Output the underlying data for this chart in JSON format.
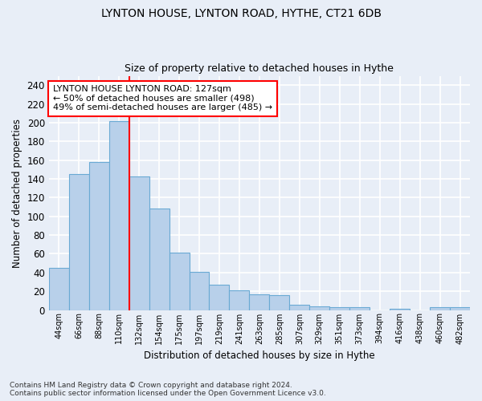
{
  "title1": "LYNTON HOUSE, LYNTON ROAD, HYTHE, CT21 6DB",
  "title2": "Size of property relative to detached houses in Hythe",
  "xlabel": "Distribution of detached houses by size in Hythe",
  "ylabel": "Number of detached properties",
  "footnote": "Contains HM Land Registry data © Crown copyright and database right 2024.\nContains public sector information licensed under the Open Government Licence v3.0.",
  "bar_labels": [
    "44sqm",
    "66sqm",
    "88sqm",
    "110sqm",
    "132sqm",
    "154sqm",
    "175sqm",
    "197sqm",
    "219sqm",
    "241sqm",
    "263sqm",
    "285sqm",
    "307sqm",
    "329sqm",
    "351sqm",
    "373sqm",
    "394sqm",
    "416sqm",
    "438sqm",
    "460sqm",
    "482sqm"
  ],
  "bar_heights": [
    45,
    145,
    158,
    202,
    143,
    108,
    61,
    41,
    27,
    21,
    17,
    16,
    6,
    4,
    3,
    3,
    0,
    1,
    0,
    3,
    3
  ],
  "bar_color": "#b8d0ea",
  "bar_edge_color": "#6aaad4",
  "vline_x": 3.5,
  "vline_color": "red",
  "annotation_text": "LYNTON HOUSE LYNTON ROAD: 127sqm\n← 50% of detached houses are smaller (498)\n49% of semi-detached houses are larger (485) →",
  "annotation_box_color": "white",
  "annotation_box_edge": "red",
  "ylim": [
    0,
    250
  ],
  "yticks": [
    0,
    20,
    40,
    60,
    80,
    100,
    120,
    140,
    160,
    180,
    200,
    220,
    240
  ],
  "bg_color": "#e8eef7",
  "grid_color": "white"
}
